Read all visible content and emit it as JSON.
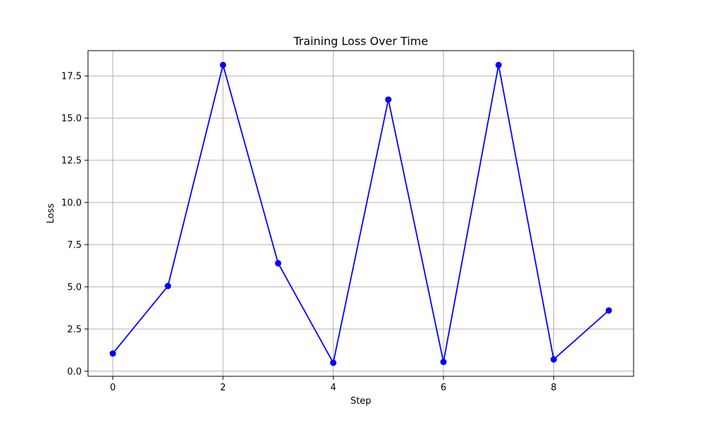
{
  "chart_data": {
    "type": "line",
    "title": "Training Loss Over Time",
    "xlabel": "Step",
    "ylabel": "Loss",
    "xlim": [
      -0.45,
      9.45
    ],
    "ylim": [
      -0.3,
      19.0
    ],
    "x_ticks": [
      0,
      2,
      4,
      6,
      8
    ],
    "x_tick_labels": [
      "0",
      "2",
      "4",
      "6",
      "8"
    ],
    "y_ticks": [
      0,
      2.5,
      5,
      7.5,
      10,
      12.5,
      15,
      17.5
    ],
    "y_tick_labels": [
      "0.0",
      "2.5",
      "5.0",
      "7.5",
      "10.0",
      "12.5",
      "15.0",
      "17.5"
    ],
    "grid": true,
    "series": [
      {
        "color": "#0000ff",
        "marker": "circle",
        "x": [
          0,
          1,
          2,
          3,
          4,
          5,
          6,
          7,
          8,
          9
        ],
        "y": [
          1.05,
          5.05,
          18.15,
          6.4,
          0.5,
          16.1,
          0.55,
          18.15,
          0.7,
          3.6
        ]
      }
    ]
  }
}
